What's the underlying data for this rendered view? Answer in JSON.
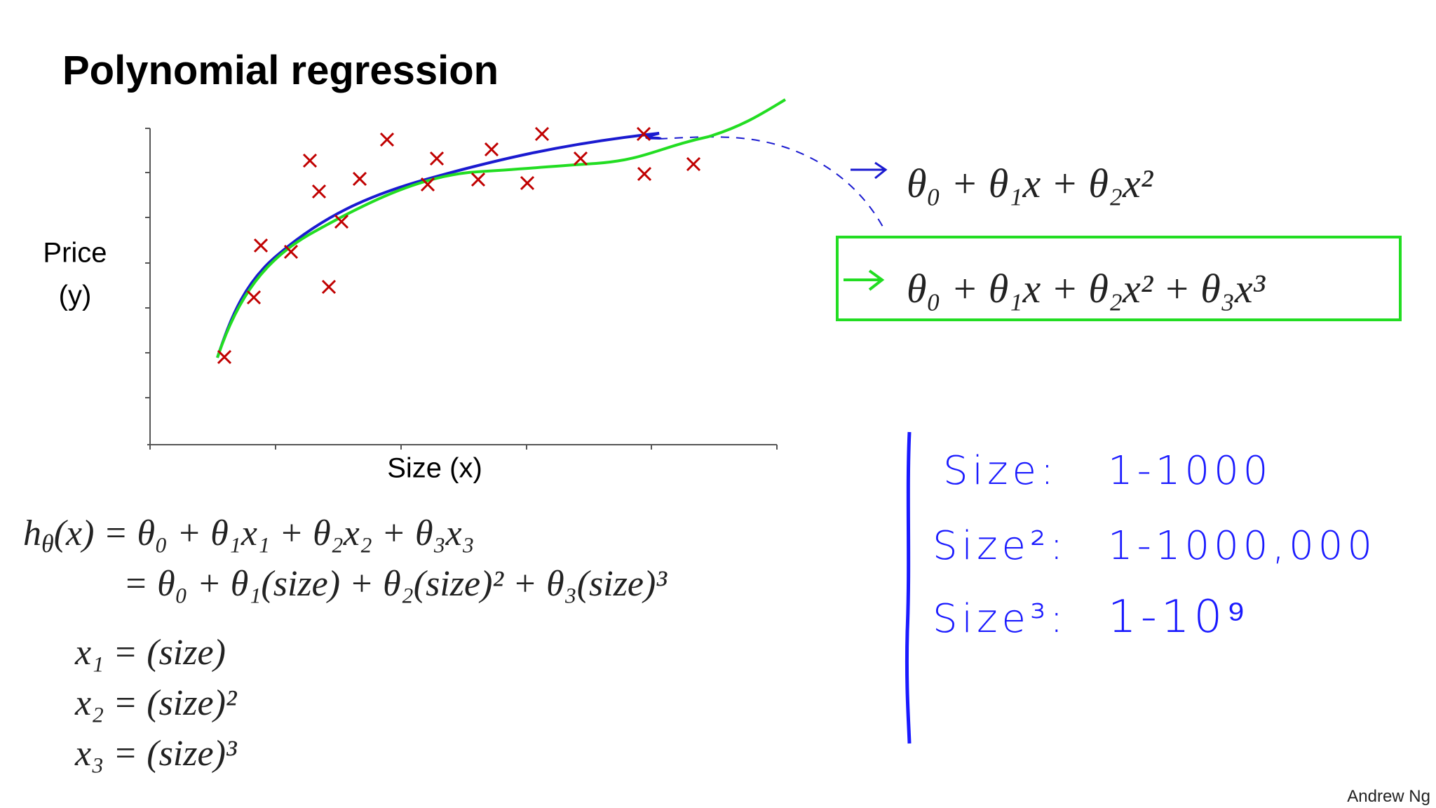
{
  "header": {
    "title": "Polynomial regression"
  },
  "plot": {
    "y_label": [
      "Price",
      "(y)"
    ],
    "x_label": "Size (x)"
  },
  "hypotheses": [
    "θ₀ + θ₁x + θ₂x²",
    "θ₀ + θ₁x + θ₂x² + θ₃x³"
  ],
  "formulas": {
    "h_line": [
      "h",
      "θ",
      "(x) = θ₀ + θ₁x₁ + θ₂x₂ + θ₃x₃"
    ],
    "expanded": "= θ₀ + θ₁(size) + θ₂(size)² + θ₃(size)³",
    "features": [
      "x₁ = (size)",
      "x₂ = (size)²",
      "x₃ = (size)³"
    ]
  },
  "notes": [
    [
      "Size:",
      "1-1000"
    ],
    [
      "Size²:",
      "1-1000,000"
    ],
    [
      "Size³:",
      "1-10⁹"
    ]
  ],
  "footer": {
    "author": "Andrew Ng"
  }
}
